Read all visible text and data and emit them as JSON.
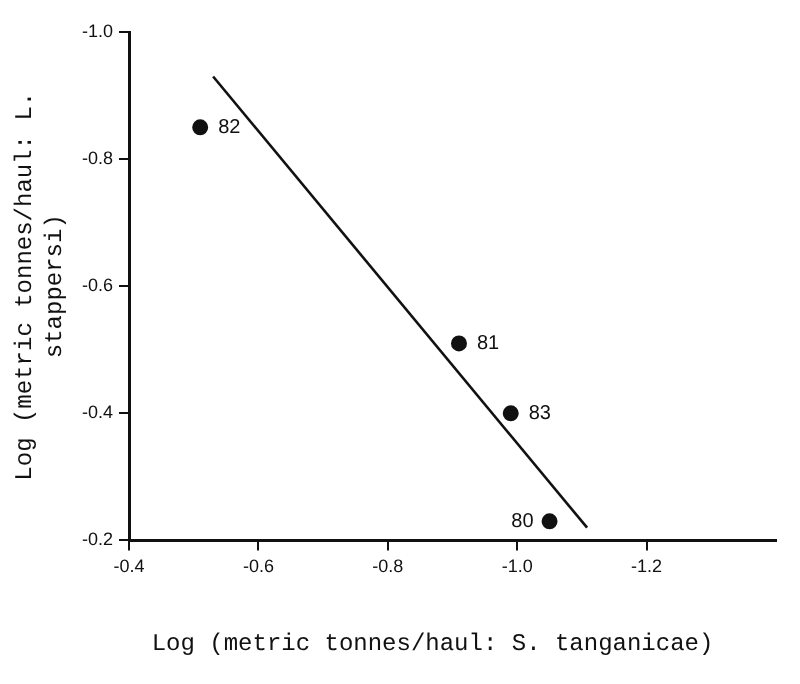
{
  "chart_data": {
    "type": "scatter",
    "xlabel": "Log (metric tonnes/haul: S. tanganicae)",
    "ylabel": "Log (metric tonnes/haul: L. stappersi)",
    "x": [
      -0.51,
      -0.91,
      -0.99,
      -1.05
    ],
    "values": [
      -0.85,
      -0.51,
      -0.4,
      -0.23
    ],
    "color": "#111111",
    "marker": "circle",
    "series": [
      {
        "type": "line",
        "x": [
          -0.53,
          -1.108
        ],
        "values": [
          -0.93,
          -0.22
        ],
        "color": "#111111",
        "marker": "none"
      }
    ],
    "xlim": [
      -0.4,
      -1.4
    ],
    "xticks": [
      -0.4,
      -0.6,
      -0.8,
      {
        "value": -1.0,
        "label": "-1.0"
      },
      -1.2
    ],
    "ylim": [
      -0.2,
      -1.0
    ],
    "yticks": [
      -0.2,
      -0.4,
      -0.6,
      -0.8,
      {
        "value": -1.0,
        "label": "-1.0"
      }
    ],
    "annotations": [
      {
        "text": "82",
        "x": -0.51,
        "y": -0.85
      },
      {
        "text": "81",
        "x": -0.91,
        "y": -0.51
      },
      {
        "text": "83",
        "x": -0.99,
        "y": -0.4
      },
      {
        "text": "80",
        "x": -1.05,
        "y": -0.23
      }
    ],
    "grid": false,
    "legend": false
  }
}
